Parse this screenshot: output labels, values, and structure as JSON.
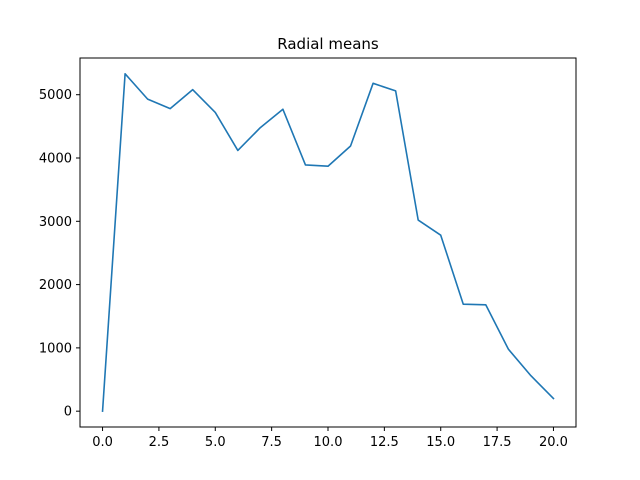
{
  "chart_data": {
    "type": "line",
    "title": "Radial means",
    "xlabel": "",
    "ylabel": "",
    "xlim": [
      -1.0,
      21.0
    ],
    "ylim": [
      -250,
      5580
    ],
    "x_ticks": [
      0.0,
      2.5,
      5.0,
      7.5,
      10.0,
      12.5,
      15.0,
      17.5,
      20.0
    ],
    "x_tick_labels": [
      "0.0",
      "2.5",
      "5.0",
      "7.5",
      "10.0",
      "12.5",
      "15.0",
      "17.5",
      "20.0"
    ],
    "y_ticks": [
      0,
      1000,
      2000,
      3000,
      4000,
      5000
    ],
    "y_tick_labels": [
      "0",
      "1000",
      "2000",
      "3000",
      "4000",
      "5000"
    ],
    "grid": false,
    "series": [
      {
        "color": "#1f77b4",
        "x": [
          0,
          1,
          2,
          3,
          4,
          5,
          6,
          7,
          8,
          9,
          10,
          11,
          12,
          13,
          14,
          15,
          16,
          17,
          18,
          19,
          20
        ],
        "y": [
          0,
          5330,
          4930,
          4780,
          5080,
          4720,
          4120,
          4480,
          4770,
          3890,
          3870,
          4190,
          5180,
          5060,
          3020,
          2780,
          1690,
          1680,
          980,
          560,
          200
        ]
      }
    ]
  }
}
